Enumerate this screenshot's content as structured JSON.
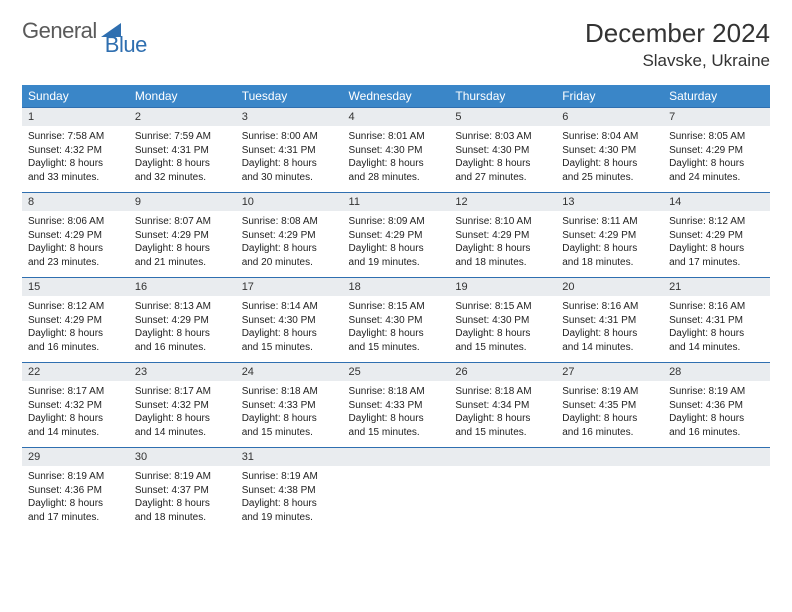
{
  "brand": {
    "part1": "General",
    "part2": "Blue"
  },
  "title": "December 2024",
  "location": "Slavske, Ukraine",
  "colors": {
    "header_bg": "#3a86c8",
    "header_text": "#ffffff",
    "daynum_bg": "#e9ecef",
    "border": "#2f6fb0",
    "logo_gray": "#5a5a5a",
    "logo_blue": "#2f6fb0",
    "body_text": "#222222"
  },
  "typography": {
    "title_fontsize": 26,
    "location_fontsize": 17,
    "dayhead_fontsize": 12,
    "daynum_fontsize": 11,
    "body_fontsize": 10
  },
  "day_headers": [
    "Sunday",
    "Monday",
    "Tuesday",
    "Wednesday",
    "Thursday",
    "Friday",
    "Saturday"
  ],
  "weeks": [
    [
      {
        "n": "1",
        "sunrise": "Sunrise: 7:58 AM",
        "sunset": "Sunset: 4:32 PM",
        "day1": "Daylight: 8 hours",
        "day2": "and 33 minutes."
      },
      {
        "n": "2",
        "sunrise": "Sunrise: 7:59 AM",
        "sunset": "Sunset: 4:31 PM",
        "day1": "Daylight: 8 hours",
        "day2": "and 32 minutes."
      },
      {
        "n": "3",
        "sunrise": "Sunrise: 8:00 AM",
        "sunset": "Sunset: 4:31 PM",
        "day1": "Daylight: 8 hours",
        "day2": "and 30 minutes."
      },
      {
        "n": "4",
        "sunrise": "Sunrise: 8:01 AM",
        "sunset": "Sunset: 4:30 PM",
        "day1": "Daylight: 8 hours",
        "day2": "and 28 minutes."
      },
      {
        "n": "5",
        "sunrise": "Sunrise: 8:03 AM",
        "sunset": "Sunset: 4:30 PM",
        "day1": "Daylight: 8 hours",
        "day2": "and 27 minutes."
      },
      {
        "n": "6",
        "sunrise": "Sunrise: 8:04 AM",
        "sunset": "Sunset: 4:30 PM",
        "day1": "Daylight: 8 hours",
        "day2": "and 25 minutes."
      },
      {
        "n": "7",
        "sunrise": "Sunrise: 8:05 AM",
        "sunset": "Sunset: 4:29 PM",
        "day1": "Daylight: 8 hours",
        "day2": "and 24 minutes."
      }
    ],
    [
      {
        "n": "8",
        "sunrise": "Sunrise: 8:06 AM",
        "sunset": "Sunset: 4:29 PM",
        "day1": "Daylight: 8 hours",
        "day2": "and 23 minutes."
      },
      {
        "n": "9",
        "sunrise": "Sunrise: 8:07 AM",
        "sunset": "Sunset: 4:29 PM",
        "day1": "Daylight: 8 hours",
        "day2": "and 21 minutes."
      },
      {
        "n": "10",
        "sunrise": "Sunrise: 8:08 AM",
        "sunset": "Sunset: 4:29 PM",
        "day1": "Daylight: 8 hours",
        "day2": "and 20 minutes."
      },
      {
        "n": "11",
        "sunrise": "Sunrise: 8:09 AM",
        "sunset": "Sunset: 4:29 PM",
        "day1": "Daylight: 8 hours",
        "day2": "and 19 minutes."
      },
      {
        "n": "12",
        "sunrise": "Sunrise: 8:10 AM",
        "sunset": "Sunset: 4:29 PM",
        "day1": "Daylight: 8 hours",
        "day2": "and 18 minutes."
      },
      {
        "n": "13",
        "sunrise": "Sunrise: 8:11 AM",
        "sunset": "Sunset: 4:29 PM",
        "day1": "Daylight: 8 hours",
        "day2": "and 18 minutes."
      },
      {
        "n": "14",
        "sunrise": "Sunrise: 8:12 AM",
        "sunset": "Sunset: 4:29 PM",
        "day1": "Daylight: 8 hours",
        "day2": "and 17 minutes."
      }
    ],
    [
      {
        "n": "15",
        "sunrise": "Sunrise: 8:12 AM",
        "sunset": "Sunset: 4:29 PM",
        "day1": "Daylight: 8 hours",
        "day2": "and 16 minutes."
      },
      {
        "n": "16",
        "sunrise": "Sunrise: 8:13 AM",
        "sunset": "Sunset: 4:29 PM",
        "day1": "Daylight: 8 hours",
        "day2": "and 16 minutes."
      },
      {
        "n": "17",
        "sunrise": "Sunrise: 8:14 AM",
        "sunset": "Sunset: 4:30 PM",
        "day1": "Daylight: 8 hours",
        "day2": "and 15 minutes."
      },
      {
        "n": "18",
        "sunrise": "Sunrise: 8:15 AM",
        "sunset": "Sunset: 4:30 PM",
        "day1": "Daylight: 8 hours",
        "day2": "and 15 minutes."
      },
      {
        "n": "19",
        "sunrise": "Sunrise: 8:15 AM",
        "sunset": "Sunset: 4:30 PM",
        "day1": "Daylight: 8 hours",
        "day2": "and 15 minutes."
      },
      {
        "n": "20",
        "sunrise": "Sunrise: 8:16 AM",
        "sunset": "Sunset: 4:31 PM",
        "day1": "Daylight: 8 hours",
        "day2": "and 14 minutes."
      },
      {
        "n": "21",
        "sunrise": "Sunrise: 8:16 AM",
        "sunset": "Sunset: 4:31 PM",
        "day1": "Daylight: 8 hours",
        "day2": "and 14 minutes."
      }
    ],
    [
      {
        "n": "22",
        "sunrise": "Sunrise: 8:17 AM",
        "sunset": "Sunset: 4:32 PM",
        "day1": "Daylight: 8 hours",
        "day2": "and 14 minutes."
      },
      {
        "n": "23",
        "sunrise": "Sunrise: 8:17 AM",
        "sunset": "Sunset: 4:32 PM",
        "day1": "Daylight: 8 hours",
        "day2": "and 14 minutes."
      },
      {
        "n": "24",
        "sunrise": "Sunrise: 8:18 AM",
        "sunset": "Sunset: 4:33 PM",
        "day1": "Daylight: 8 hours",
        "day2": "and 15 minutes."
      },
      {
        "n": "25",
        "sunrise": "Sunrise: 8:18 AM",
        "sunset": "Sunset: 4:33 PM",
        "day1": "Daylight: 8 hours",
        "day2": "and 15 minutes."
      },
      {
        "n": "26",
        "sunrise": "Sunrise: 8:18 AM",
        "sunset": "Sunset: 4:34 PM",
        "day1": "Daylight: 8 hours",
        "day2": "and 15 minutes."
      },
      {
        "n": "27",
        "sunrise": "Sunrise: 8:19 AM",
        "sunset": "Sunset: 4:35 PM",
        "day1": "Daylight: 8 hours",
        "day2": "and 16 minutes."
      },
      {
        "n": "28",
        "sunrise": "Sunrise: 8:19 AM",
        "sunset": "Sunset: 4:36 PM",
        "day1": "Daylight: 8 hours",
        "day2": "and 16 minutes."
      }
    ],
    [
      {
        "n": "29",
        "sunrise": "Sunrise: 8:19 AM",
        "sunset": "Sunset: 4:36 PM",
        "day1": "Daylight: 8 hours",
        "day2": "and 17 minutes."
      },
      {
        "n": "30",
        "sunrise": "Sunrise: 8:19 AM",
        "sunset": "Sunset: 4:37 PM",
        "day1": "Daylight: 8 hours",
        "day2": "and 18 minutes."
      },
      {
        "n": "31",
        "sunrise": "Sunrise: 8:19 AM",
        "sunset": "Sunset: 4:38 PM",
        "day1": "Daylight: 8 hours",
        "day2": "and 19 minutes."
      },
      {
        "empty": true
      },
      {
        "empty": true
      },
      {
        "empty": true
      },
      {
        "empty": true
      }
    ]
  ]
}
